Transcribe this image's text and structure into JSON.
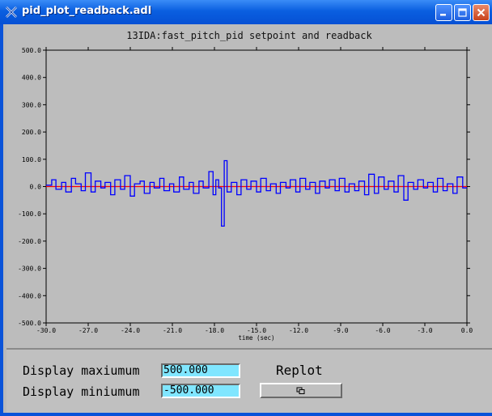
{
  "window": {
    "title": "pid_plot_readback.adl",
    "buttons": [
      "minimize",
      "maximize",
      "close"
    ]
  },
  "plot": {
    "title": "13IDA:fast_pitch_pid setpoint and readback"
  },
  "controls": {
    "max_label": "Display maxiumum",
    "max_value": "500.000",
    "min_label": "Display miniumum",
    "min_value": "-500.000",
    "replot_label": "Replot"
  },
  "colors": {
    "background": "#b9b9b9",
    "readback": "#0000ff",
    "setpoint": "#ff0000",
    "field": "#80e6ff"
  },
  "chart_data": {
    "type": "line",
    "title": "13IDA:fast_pitch_pid setpoint and readback",
    "xlabel": "time (sec)",
    "ylabel": "",
    "xlim": [
      -30,
      0
    ],
    "ylim": [
      -500,
      500
    ],
    "x_ticks": [
      "-30.0",
      "-27.0",
      "-24.0",
      "-21.0",
      "-18.0",
      "-15.0",
      "-12.0",
      "-9.0",
      "-6.0",
      "-3.0",
      "0.0"
    ],
    "y_ticks": [
      "500.0",
      "400.0",
      "300.0",
      "200.0",
      "100.0",
      "0.0",
      "-100.0",
      "-200.0",
      "-300.0",
      "-400.0",
      "-500.0"
    ],
    "series": [
      {
        "name": "",
        "color": "#ff0000",
        "style": "step",
        "x": [
          -30,
          0
        ],
        "y": [
          0,
          0
        ]
      },
      {
        "name": "",
        "color": "#0000ff",
        "style": "step",
        "x": [
          -30,
          -29.6,
          -29.3,
          -28.9,
          -28.6,
          -28.2,
          -27.9,
          -27.5,
          -27.2,
          -26.8,
          -26.5,
          -26.1,
          -25.8,
          -25.4,
          -25.1,
          -24.7,
          -24.4,
          -24,
          -23.7,
          -23.3,
          -23,
          -22.6,
          -22.3,
          -21.9,
          -21.6,
          -21.2,
          -20.9,
          -20.5,
          -20.2,
          -19.8,
          -19.5,
          -19.1,
          -18.8,
          -18.4,
          -18.1,
          -17.9,
          -17.7,
          -17.5,
          -17.3,
          -17.1,
          -16.8,
          -16.4,
          -16.1,
          -15.7,
          -15.4,
          -15,
          -14.7,
          -14.3,
          -14,
          -13.6,
          -13.3,
          -12.9,
          -12.6,
          -12.2,
          -11.9,
          -11.5,
          -11.2,
          -10.8,
          -10.5,
          -10.1,
          -9.8,
          -9.4,
          -9.1,
          -8.7,
          -8.4,
          -8,
          -7.7,
          -7.3,
          -7,
          -6.6,
          -6.3,
          -5.9,
          -5.6,
          -5.2,
          -4.9,
          -4.5,
          -4.2,
          -3.8,
          -3.5,
          -3.1,
          -2.8,
          -2.4,
          -2.1,
          -1.7,
          -1.4,
          -1,
          -0.7,
          -0.3
        ],
        "y": [
          5,
          25,
          -10,
          15,
          -20,
          30,
          10,
          -15,
          50,
          -20,
          20,
          -5,
          15,
          -30,
          25,
          -10,
          40,
          -35,
          10,
          20,
          -25,
          15,
          -5,
          30,
          -15,
          10,
          -20,
          35,
          -10,
          15,
          -25,
          20,
          -5,
          55,
          -30,
          25,
          -5,
          -145,
          95,
          -20,
          15,
          -30,
          25,
          -10,
          20,
          -20,
          30,
          -15,
          10,
          -25,
          15,
          -5,
          25,
          -20,
          30,
          -10,
          15,
          -25,
          20,
          -5,
          25,
          -15,
          30,
          -20,
          10,
          -15,
          20,
          -30,
          45,
          -25,
          35,
          -10,
          20,
          -20,
          40,
          -50,
          15,
          -10,
          25,
          -5,
          15,
          -20,
          30,
          -15,
          10,
          -25,
          35,
          -5
        ]
      }
    ]
  }
}
